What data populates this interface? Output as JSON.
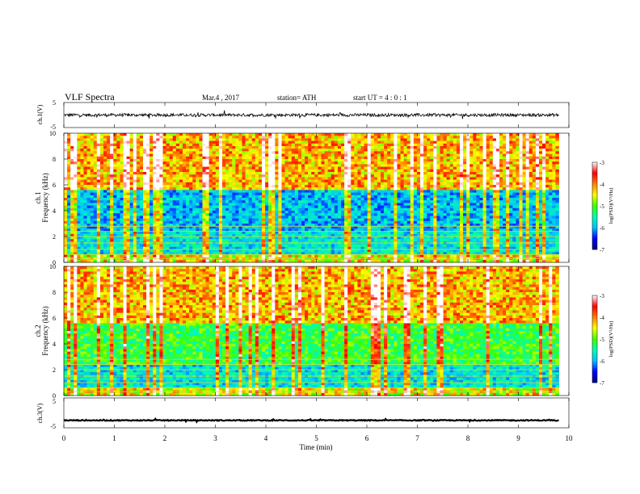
{
  "header": {
    "title": "VLF  Spectra",
    "date": "Mar.4  , 2017",
    "station": "station= ATH",
    "start": "start  UT  =   4  : 0   : 1"
  },
  "chart_data": [
    {
      "id": "ch1-waveform",
      "type": "line",
      "ylabel": "ch.1(V)",
      "yticks": [
        "5",
        "-5"
      ],
      "ylim": [
        -5,
        5
      ],
      "xlim": [
        0,
        10
      ],
      "baseline": 0,
      "amplitude": 1,
      "color": "#000000"
    },
    {
      "id": "ch1-spectrogram",
      "type": "heatmap",
      "ylabel": [
        "ch.1",
        "Frequency  (kHz)"
      ],
      "ylim": [
        0,
        10
      ],
      "yticks": [
        "0",
        "2",
        "4",
        "6",
        "8",
        "10"
      ],
      "xlim": [
        0,
        9.8
      ],
      "colorbar": {
        "label": "log(PSD)(V²/Hz)",
        "range": [
          -7,
          -3
        ],
        "ticks": [
          "-3",
          "-4",
          "-5",
          "-6",
          "-7"
        ]
      }
    },
    {
      "id": "ch2-spectrogram",
      "type": "heatmap",
      "ylabel": [
        "ch.2",
        "Frequency  (kHz)"
      ],
      "ylim": [
        0,
        10
      ],
      "yticks": [
        "0",
        "2",
        "4",
        "6",
        "8",
        "10"
      ],
      "xlim": [
        0,
        9.8
      ],
      "colorbar": {
        "label": "log(PSD)(V²/Hz)",
        "range": [
          -7,
          -3
        ],
        "ticks": [
          "-3",
          "-4",
          "-5",
          "-6",
          "-7"
        ]
      }
    },
    {
      "id": "ch3-waveform",
      "type": "line",
      "ylabel": "ch.3(V)",
      "yticks": [
        "5",
        "-5"
      ],
      "ylim": [
        -5,
        5
      ],
      "xlim": [
        0,
        10
      ],
      "baseline": -2.5,
      "amplitude": 0.3,
      "color": "#000000"
    }
  ],
  "xaxis": {
    "label": "Time  (min)",
    "ticks": [
      "0",
      "1",
      "2",
      "3",
      "4",
      "5",
      "6",
      "7",
      "8",
      "9",
      "10"
    ]
  },
  "colormap": [
    "#000080",
    "#0000ff",
    "#00c0ff",
    "#00ffb0",
    "#40ff00",
    "#ffff00",
    "#ff8000",
    "#ff0000",
    "#ffffff"
  ]
}
